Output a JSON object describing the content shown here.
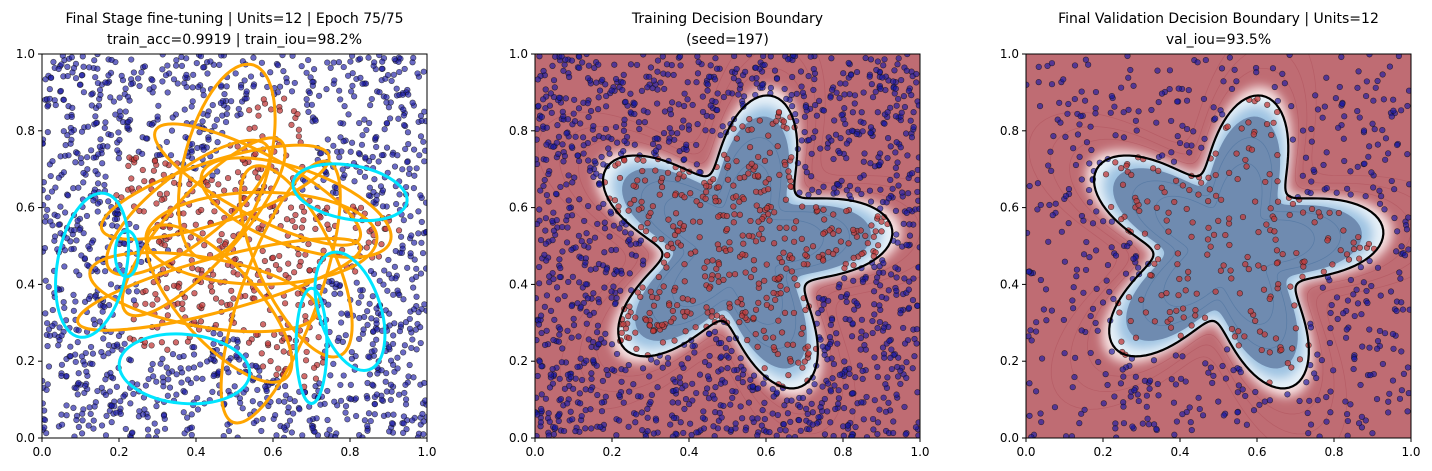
{
  "figure": {
    "background": "#ffffff"
  },
  "chart_data": [
    {
      "type": "scatter",
      "title_line1": "Final Stage fine-tuning | Units=12 | Epoch 75/75",
      "title_line2": "train_acc=0.9919 | train_iou=98.2%",
      "xlim": [
        0,
        1
      ],
      "ylim": [
        0,
        1
      ],
      "x_ticks": [
        "0.0",
        "0.2",
        "0.4",
        "0.6",
        "0.8",
        "1.0"
      ],
      "y_ticks": [
        "0.0",
        "0.2",
        "0.4",
        "0.6",
        "0.8",
        "1.0"
      ],
      "grid": false,
      "legend": "none",
      "points": {
        "n_outside": 1300,
        "n_inside": 430,
        "seed": 11,
        "outside_color": "#1a1aa6",
        "inside_color": "#c23b3b"
      },
      "star": {
        "center": [
          0.53,
          0.5
        ],
        "base_radius": 0.3,
        "amplitude": 0.1,
        "arms": 5,
        "phase": 0.5
      },
      "orange_ellipses": [
        {
          "cx": 0.38,
          "cy": 0.6,
          "rx": 0.26,
          "ry": 0.09,
          "angle": 38
        },
        {
          "cx": 0.45,
          "cy": 0.64,
          "rx": 0.31,
          "ry": 0.08,
          "angle": 18
        },
        {
          "cx": 0.56,
          "cy": 0.66,
          "rx": 0.3,
          "ry": 0.08,
          "angle": -28
        },
        {
          "cx": 0.48,
          "cy": 0.72,
          "rx": 0.26,
          "ry": 0.11,
          "angle": 75
        },
        {
          "cx": 0.42,
          "cy": 0.55,
          "rx": 0.3,
          "ry": 0.09,
          "angle": 48
        },
        {
          "cx": 0.46,
          "cy": 0.4,
          "rx": 0.38,
          "ry": 0.07,
          "angle": 15
        },
        {
          "cx": 0.42,
          "cy": 0.38,
          "rx": 0.3,
          "ry": 0.09,
          "angle": -10
        },
        {
          "cx": 0.46,
          "cy": 0.35,
          "rx": 0.26,
          "ry": 0.1,
          "angle": -48
        },
        {
          "cx": 0.62,
          "cy": 0.38,
          "rx": 0.36,
          "ry": 0.1,
          "angle": 70
        },
        {
          "cx": 0.66,
          "cy": 0.46,
          "rx": 0.27,
          "ry": 0.1,
          "angle": 115
        },
        {
          "cx": 0.57,
          "cy": 0.52,
          "rx": 0.3,
          "ry": 0.12,
          "angle": 0
        },
        {
          "cx": 0.66,
          "cy": 0.6,
          "rx": 0.26,
          "ry": 0.1,
          "angle": -20
        }
      ],
      "cyan_ellipses": [
        {
          "cx": 0.8,
          "cy": 0.64,
          "rx": 0.15,
          "ry": 0.07,
          "angle": -10
        },
        {
          "cx": 0.13,
          "cy": 0.45,
          "rx": 0.09,
          "ry": 0.19,
          "angle": -10
        },
        {
          "cx": 0.22,
          "cy": 0.48,
          "rx": 0.03,
          "ry": 0.06,
          "angle": 0
        },
        {
          "cx": 0.37,
          "cy": 0.18,
          "rx": 0.17,
          "ry": 0.09,
          "angle": -5
        },
        {
          "cx": 0.7,
          "cy": 0.24,
          "rx": 0.04,
          "ry": 0.15,
          "angle": 0
        },
        {
          "cx": 0.8,
          "cy": 0.33,
          "rx": 0.08,
          "ry": 0.16,
          "angle": 18
        }
      ]
    },
    {
      "type": "heatmap",
      "title_line1": "Training Decision Boundary",
      "title_line2": "(seed=197)",
      "xlim": [
        0,
        1
      ],
      "ylim": [
        0,
        1
      ],
      "x_ticks": [
        "0.0",
        "0.2",
        "0.4",
        "0.6",
        "0.8",
        "1.0"
      ],
      "y_ticks": [
        "0.0",
        "0.2",
        "0.4",
        "0.6",
        "0.8",
        "1.0"
      ],
      "grid": false,
      "legend": "none",
      "points": {
        "n_outside": 1300,
        "n_inside": 430,
        "seed": 23,
        "outside_color": "#1a1aa6",
        "inside_color": "#c23b3b"
      },
      "star": {
        "center": [
          0.53,
          0.5
        ],
        "base_radius": 0.3,
        "amplitude": 0.1,
        "arms": 5,
        "phase": 0.5
      },
      "colors": {
        "outside": "#bf6c73",
        "inside": "#6f8bb0",
        "boundary": "#000000"
      }
    },
    {
      "type": "heatmap",
      "title_line1": "Final Validation Decision Boundary | Units=12",
      "title_line2": "val_iou=93.5%",
      "xlim": [
        0,
        1
      ],
      "ylim": [
        0,
        1
      ],
      "x_ticks": [
        "0.0",
        "0.2",
        "0.4",
        "0.6",
        "0.8",
        "1.0"
      ],
      "y_ticks": [
        "0.0",
        "0.2",
        "0.4",
        "0.6",
        "0.8",
        "1.0"
      ],
      "grid": false,
      "legend": "none",
      "points": {
        "n_outside": 500,
        "n_inside": 210,
        "seed": 41,
        "outside_color": "#1a1aa6",
        "inside_color": "#c23b3b"
      },
      "star": {
        "center": [
          0.53,
          0.5
        ],
        "base_radius": 0.3,
        "amplitude": 0.1,
        "arms": 5,
        "phase": 0.5
      },
      "colors": {
        "outside": "#bf6c73",
        "inside": "#6f8bb0",
        "boundary": "#000000"
      }
    }
  ]
}
